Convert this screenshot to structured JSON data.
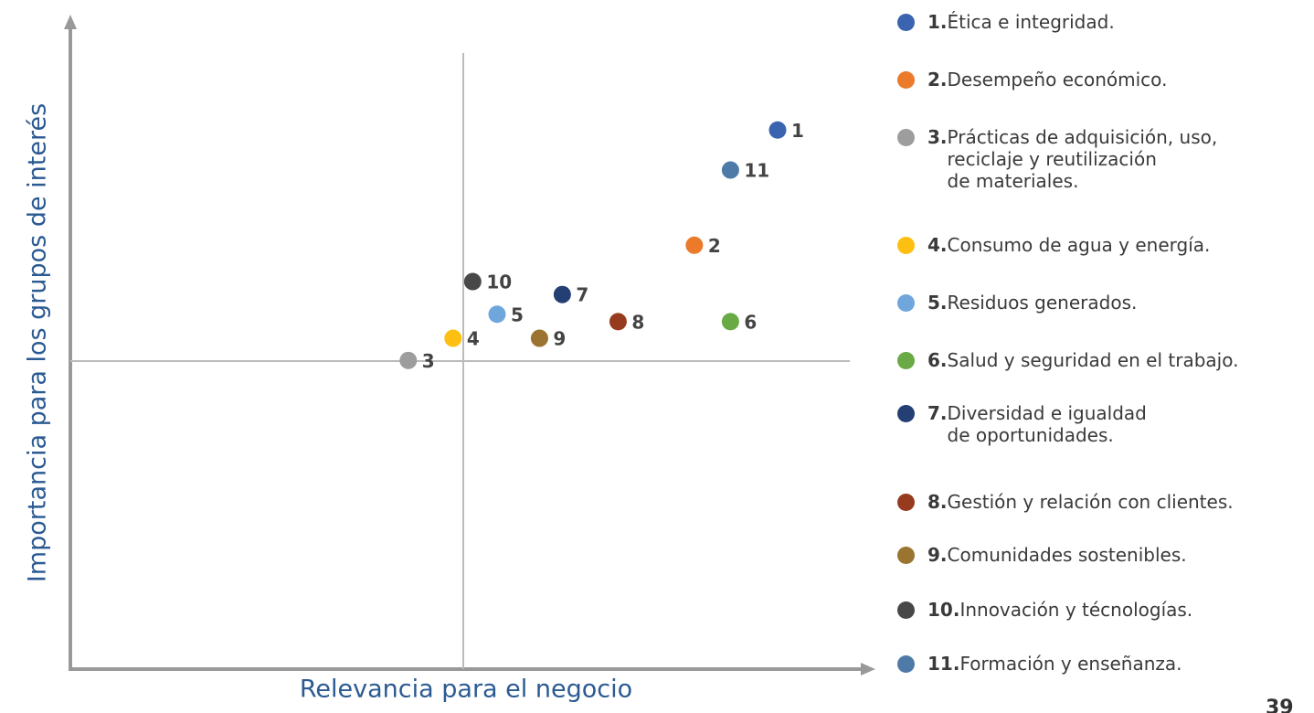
{
  "chart_data": {
    "type": "scatter",
    "xlabel": "Relevancia para el negocio",
    "ylabel": "Importancia para los grupos de interés",
    "xlim": [
      0,
      10
    ],
    "ylim": [
      0,
      10
    ],
    "xdivider": 5,
    "ydivider": 5,
    "points": [
      {
        "label": "1",
        "number": "1.",
        "name": "Ética e integridad.",
        "color": "#3a63b0",
        "x": 9.0,
        "y": 8.75
      },
      {
        "label": "2",
        "number": "2.",
        "name": "Desempeño económico.",
        "color": "#ec7a2b",
        "x": 7.94,
        "y": 6.88
      },
      {
        "label": "3",
        "number": "3.",
        "name": "Prácticas de adquisición, uso,\nreciclaje y reutilización\n de materiales.",
        "color": "#9d9d9d",
        "x": 4.3,
        "y": 5.01
      },
      {
        "label": "4",
        "number": "4.",
        "name": "Consumo de agua y energía.",
        "color": "#fdbf12",
        "x": 4.87,
        "y": 5.37
      },
      {
        "label": "5",
        "number": "5.",
        "name": "Residuos generados.",
        "color": "#6fa7dc",
        "x": 5.43,
        "y": 5.76
      },
      {
        "label": "6",
        "number": "6.",
        "name": "Salud y seguridad en el trabajo.",
        "color": "#6aaa45",
        "x": 8.4,
        "y": 5.64
      },
      {
        "label": "7",
        "number": "7.",
        "name": "Diversidad e igualdad\nde oportunidades.",
        "color": "#233f74",
        "x": 6.26,
        "y": 6.08
      },
      {
        "label": "8",
        "number": "8.",
        "name": "Gestión y relación con clientes.",
        "color": "#973b1f",
        "x": 6.97,
        "y": 5.64
      },
      {
        "label": "9",
        "number": "9.",
        "name": "Comunidades sostenibles.",
        "color": "#9a7430",
        "x": 5.97,
        "y": 5.37
      },
      {
        "label": "10",
        "number": "10.",
        "name": "Innovación y técnologías.",
        "color": "#484848",
        "x": 5.12,
        "y": 6.29
      },
      {
        "label": "11",
        "number": "11.",
        "name": "Formación y enseñanza.",
        "color": "#4e7aa8",
        "x": 8.4,
        "y": 8.1
      }
    ]
  },
  "page_number": "39"
}
